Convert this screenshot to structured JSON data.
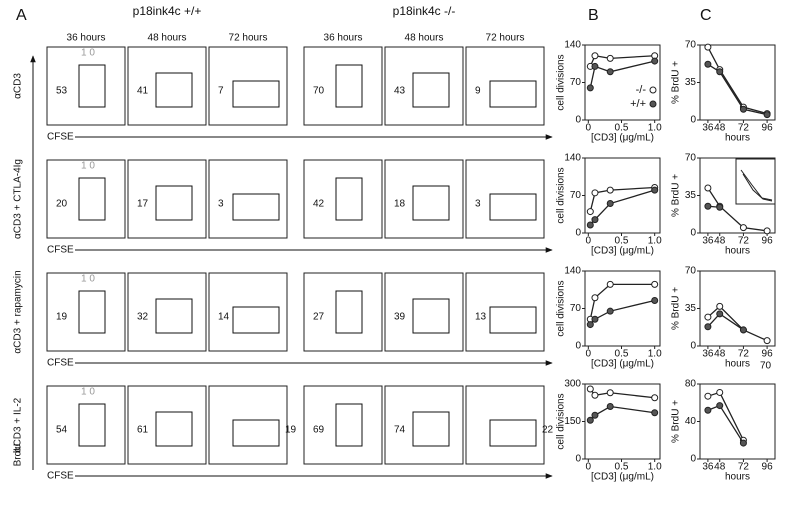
{
  "panel_labels": [
    "A",
    "B",
    "C"
  ],
  "genotypes": [
    "p18ink4c +/+",
    "p18ink4c -/-"
  ],
  "times": [
    "36 hours",
    "48 hours",
    "72 hours"
  ],
  "gate_label": "1 0",
  "x_axis_label": "CFSE",
  "y_axis_label": "BrdU",
  "conditions": [
    {
      "label": "αCD3",
      "percents": [
        [
          53,
          41,
          7
        ],
        [
          70,
          43,
          9
        ]
      ]
    },
    {
      "label": "αCD3 + CTLA-4Ig",
      "percents": [
        [
          20,
          17,
          3
        ],
        [
          42,
          18,
          3
        ]
      ]
    },
    {
      "label": "αCD3 + rapamycin",
      "percents": [
        [
          19,
          32,
          14
        ],
        [
          27,
          39,
          13
        ]
      ]
    },
    {
      "label": "αCD3 + IL-2",
      "percents": [
        [
          54,
          61,
          19
        ],
        [
          69,
          74,
          22
        ]
      ]
    }
  ],
  "stray_text": "70",
  "chart_data": [
    {
      "type": "line",
      "ylabel": "cell divisions",
      "xlabel": "[CD3] (μg/mL)",
      "xlim": [
        -0.05,
        1.08
      ],
      "xticks": [
        0,
        0.5,
        {
          "value": 1,
          "label": "1.0"
        }
      ],
      "ylim": [
        0,
        140
      ],
      "yticks": [
        0,
        70,
        140
      ],
      "legend": "center right",
      "series": [
        {
          "name": "-/-",
          "color": "#222",
          "fill": "#ffffff",
          "x": [
            0.03,
            0.1,
            0.33,
            1.0
          ],
          "values": [
            100,
            120,
            115,
            120
          ]
        },
        {
          "name": "+/+",
          "color": "#222",
          "fill": "#555555",
          "x": [
            0.03,
            0.1,
            0.33,
            1.0
          ],
          "values": [
            60,
            100,
            90,
            110
          ]
        }
      ]
    },
    {
      "type": "line",
      "ylabel": "cell divisions",
      "xlabel": "[CD3] (μg/mL)",
      "xlim": [
        -0.05,
        1.08
      ],
      "xticks": [
        0,
        0.5,
        {
          "value": 1,
          "label": "1.0"
        }
      ],
      "ylim": [
        0,
        140
      ],
      "yticks": [
        0,
        70,
        140
      ],
      "series": [
        {
          "color": "#222",
          "fill": "#ffffff",
          "x": [
            0.03,
            0.1,
            0.33,
            1.0
          ],
          "values": [
            40,
            75,
            80,
            85
          ]
        },
        {
          "color": "#222",
          "fill": "#555555",
          "x": [
            0.03,
            0.1,
            0.33,
            1.0
          ],
          "values": [
            15,
            25,
            55,
            80
          ]
        }
      ]
    },
    {
      "type": "line",
      "ylabel": "cell divisions",
      "xlabel": "[CD3] (μg/mL)",
      "xlim": [
        -0.05,
        1.08
      ],
      "xticks": [
        0,
        0.5,
        {
          "value": 1,
          "label": "1.0"
        }
      ],
      "ylim": [
        0,
        140
      ],
      "yticks": [
        0,
        70,
        140
      ],
      "series": [
        {
          "color": "#222",
          "fill": "#ffffff",
          "x": [
            0.03,
            0.1,
            0.33,
            1.0
          ],
          "values": [
            50,
            90,
            115,
            115
          ]
        },
        {
          "color": "#222",
          "fill": "#555555",
          "x": [
            0.03,
            0.1,
            0.33,
            1.0
          ],
          "values": [
            40,
            50,
            65,
            85
          ]
        }
      ]
    },
    {
      "type": "line",
      "ylabel": "cell divisions",
      "xlabel": "[CD3] (μg/mL)",
      "xlim": [
        -0.05,
        1.08
      ],
      "xticks": [
        0,
        0.5,
        {
          "value": 1,
          "label": "1.0"
        }
      ],
      "ylim": [
        0,
        300
      ],
      "yticks": [
        0,
        150,
        300
      ],
      "series": [
        {
          "color": "#222",
          "fill": "#ffffff",
          "x": [
            0.03,
            0.1,
            0.33,
            1.0
          ],
          "values": [
            280,
            255,
            265,
            245
          ]
        },
        {
          "color": "#222",
          "fill": "#555555",
          "x": [
            0.03,
            0.1,
            0.33,
            1.0
          ],
          "values": [
            155,
            175,
            210,
            185
          ]
        }
      ]
    },
    {
      "type": "line",
      "ylabel": "% BrdU +",
      "xlabel": "hours",
      "xlim": [
        28,
        104
      ],
      "xticks": [
        36,
        48,
        72,
        96
      ],
      "ylim": [
        0,
        70
      ],
      "yticks": [
        0,
        35,
        70
      ],
      "series": [
        {
          "color": "#222",
          "fill": "#ffffff",
          "x": [
            36,
            48,
            72,
            96
          ],
          "values": [
            68,
            47,
            12,
            6
          ]
        },
        {
          "color": "#222",
          "fill": "#555555",
          "x": [
            36,
            48,
            72,
            96
          ],
          "values": [
            52,
            45,
            10,
            5
          ]
        }
      ]
    },
    {
      "type": "line",
      "ylabel": "% BrdU +",
      "xlabel": "hours",
      "xlim": [
        28,
        104
      ],
      "xticks": [
        36,
        48,
        72,
        96
      ],
      "ylim": [
        0,
        70
      ],
      "yticks": [
        0,
        35,
        70
      ],
      "series": [
        {
          "color": "#222",
          "fill": "#ffffff",
          "x": [
            36,
            48,
            72,
            96
          ],
          "values": [
            42,
            25,
            5,
            2
          ]
        },
        {
          "color": "#222",
          "fill": "#555555",
          "x": [
            36,
            48
          ],
          "values": [
            25,
            24
          ]
        }
      ]
    },
    {
      "type": "line",
      "ylabel": "% BrdU +",
      "xlabel": "hours",
      "xlim": [
        28,
        104
      ],
      "xticks": [
        36,
        48,
        72,
        96
      ],
      "ylim": [
        0,
        70
      ],
      "yticks": [
        0,
        35,
        70
      ],
      "series": [
        {
          "color": "#222",
          "fill": "#ffffff",
          "x": [
            36,
            48,
            72,
            96
          ],
          "values": [
            27,
            37,
            15,
            5
          ]
        },
        {
          "color": "#222",
          "fill": "#555555",
          "x": [
            36,
            48,
            72
          ],
          "values": [
            18,
            30,
            15
          ]
        }
      ]
    },
    {
      "type": "line",
      "ylabel": "% BrdU +",
      "xlabel": "hours",
      "xlim": [
        28,
        104
      ],
      "xticks": [
        36,
        48,
        72,
        96
      ],
      "ylim": [
        0,
        80
      ],
      "yticks": [
        0,
        40,
        80
      ],
      "series": [
        {
          "color": "#222",
          "fill": "#ffffff",
          "x": [
            36,
            48,
            72
          ],
          "values": [
            67,
            71,
            20
          ]
        },
        {
          "color": "#222",
          "fill": "#555555",
          "x": [
            36,
            48,
            72
          ],
          "values": [
            52,
            57,
            17
          ]
        }
      ]
    }
  ]
}
